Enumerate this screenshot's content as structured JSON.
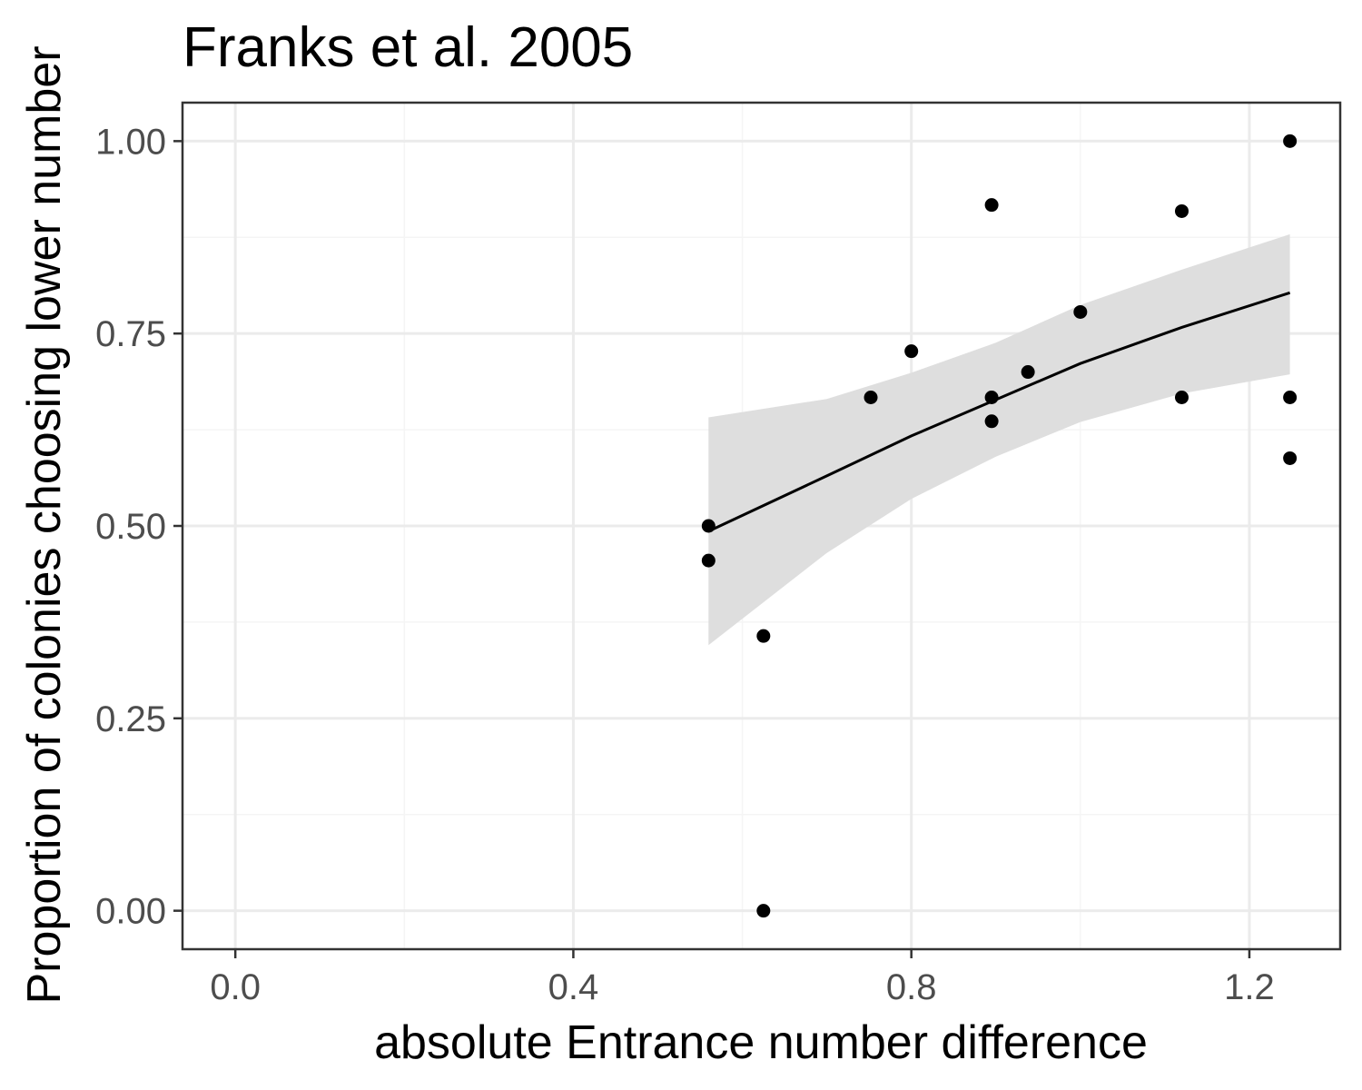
{
  "chart_data": {
    "type": "scatter",
    "title": "Franks et al. 2005",
    "xlabel": "absolute Entrance number difference",
    "ylabel": "Proportion of colonies choosing lower number",
    "xlim": [
      -0.0625,
      1.3075
    ],
    "ylim": [
      -0.05,
      1.05
    ],
    "x_ticks": [
      0.0,
      0.4,
      0.8,
      1.2
    ],
    "x_tick_labels": [
      "0.0",
      "0.4",
      "0.8",
      "1.2"
    ],
    "y_ticks": [
      0.0,
      0.25,
      0.5,
      0.75,
      1.0
    ],
    "y_tick_labels": [
      "0.00",
      "0.25",
      "0.50",
      "0.75",
      "1.00"
    ],
    "grid": true,
    "points": [
      {
        "x": 0.56,
        "y": 0.5
      },
      {
        "x": 0.56,
        "y": 0.455
      },
      {
        "x": 0.625,
        "y": 0.357
      },
      {
        "x": 0.625,
        "y": 0.0
      },
      {
        "x": 0.752,
        "y": 0.667
      },
      {
        "x": 0.8,
        "y": 0.727
      },
      {
        "x": 0.895,
        "y": 0.917
      },
      {
        "x": 0.895,
        "y": 0.667
      },
      {
        "x": 0.895,
        "y": 0.636
      },
      {
        "x": 0.938,
        "y": 0.7
      },
      {
        "x": 1.0,
        "y": 0.778
      },
      {
        "x": 1.12,
        "y": 0.909
      },
      {
        "x": 1.12,
        "y": 0.667
      },
      {
        "x": 1.248,
        "y": 1.0
      },
      {
        "x": 1.248,
        "y": 0.667
      },
      {
        "x": 1.248,
        "y": 0.588
      }
    ],
    "trend_line": {
      "x": [
        0.56,
        0.7,
        0.8,
        0.9,
        1.0,
        1.12,
        1.248
      ],
      "y": [
        0.493,
        0.565,
        0.617,
        0.664,
        0.711,
        0.758,
        0.803
      ],
      "ci_lower": [
        0.345,
        0.465,
        0.535,
        0.59,
        0.635,
        0.672,
        0.697
      ],
      "ci_upper": [
        0.641,
        0.665,
        0.699,
        0.738,
        0.787,
        0.833,
        0.879
      ]
    },
    "colors": {
      "points": "#000000",
      "line": "#000000",
      "ribbon": "#dedede",
      "grid_major": "#ebebeb",
      "grid_minor": "#f5f5f5",
      "panel_border": "#333333",
      "tick_text": "#4d4d4d"
    }
  }
}
